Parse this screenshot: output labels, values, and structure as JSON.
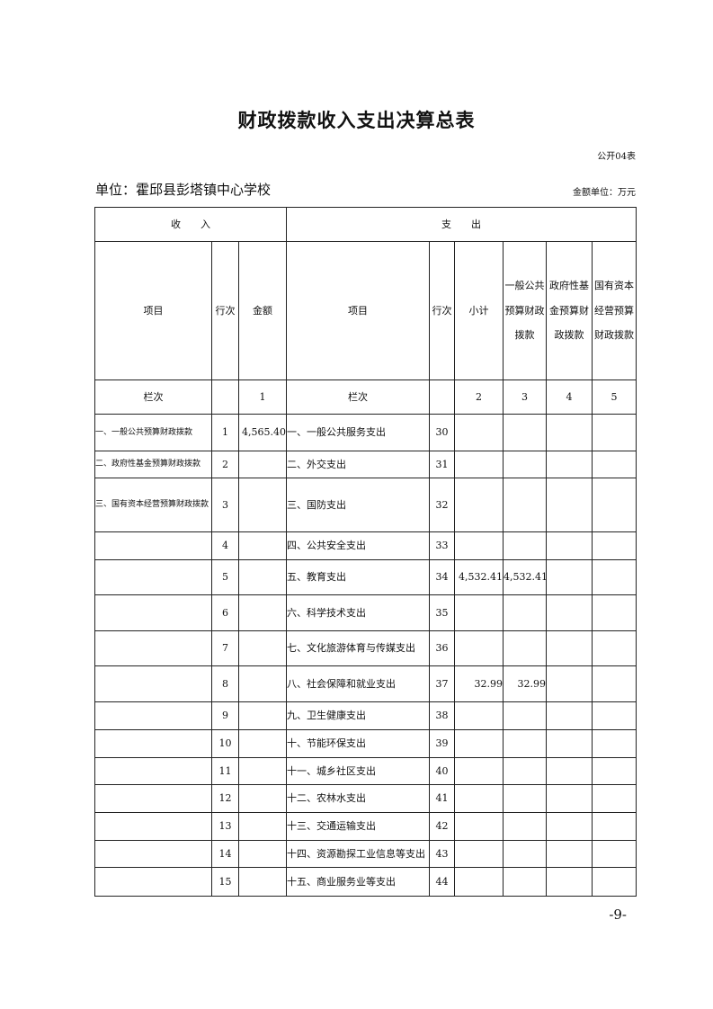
{
  "title": "财政拨款收入支出决算总表",
  "form_no": "公开04表",
  "unit": "单位：霍邱县彭塔镇中心学校",
  "money_unit": "金额单位：万元",
  "header": {
    "income": "收　　入",
    "expense": "支　　出",
    "item": "项目",
    "row_no": "行次",
    "amount": "金额",
    "subtotal": "小计",
    "general": "一般公共预算财政拨款",
    "gov_fund": "政府性基金预算财政拨款",
    "state_capital": "国有资本经营预算财政拨款",
    "col_label": "栏次",
    "c1": "1",
    "c2": "2",
    "c3": "3",
    "c4": "4",
    "c5": "5"
  },
  "rows": [
    {
      "in_item": "一、一般公共预算财政拨款",
      "in_no": "1",
      "in_amt": "4,565.40",
      "out_item": "一、一般公共服务支出",
      "out_no": "30",
      "sub": "",
      "gen": "",
      "fund": "",
      "cap": ""
    },
    {
      "in_item": "二、政府性基金预算财政拨款",
      "in_no": "2",
      "in_amt": "",
      "out_item": "二、外交支出",
      "out_no": "31",
      "sub": "",
      "gen": "",
      "fund": "",
      "cap": ""
    },
    {
      "in_item": "三、国有资本经营预算财政拨款",
      "in_no": "3",
      "in_amt": "",
      "out_item": "三、国防支出",
      "out_no": "32",
      "sub": "",
      "gen": "",
      "fund": "",
      "cap": ""
    },
    {
      "in_item": "",
      "in_no": "4",
      "in_amt": "",
      "out_item": "四、公共安全支出",
      "out_no": "33",
      "sub": "",
      "gen": "",
      "fund": "",
      "cap": ""
    },
    {
      "in_item": "",
      "in_no": "5",
      "in_amt": "",
      "out_item": "五、教育支出",
      "out_no": "34",
      "sub": "4,532.41",
      "gen": "4,532.41",
      "fund": "",
      "cap": ""
    },
    {
      "in_item": "",
      "in_no": "6",
      "in_amt": "",
      "out_item": "六、科学技术支出",
      "out_no": "35",
      "sub": "",
      "gen": "",
      "fund": "",
      "cap": ""
    },
    {
      "in_item": "",
      "in_no": "7",
      "in_amt": "",
      "out_item": "七、文化旅游体育与传媒支出",
      "out_no": "36",
      "sub": "",
      "gen": "",
      "fund": "",
      "cap": ""
    },
    {
      "in_item": "",
      "in_no": "8",
      "in_amt": "",
      "out_item": "八、社会保障和就业支出",
      "out_no": "37",
      "sub": "32.99",
      "gen": "32.99",
      "fund": "",
      "cap": ""
    },
    {
      "in_item": "",
      "in_no": "9",
      "in_amt": "",
      "out_item": "九、卫生健康支出",
      "out_no": "38",
      "sub": "",
      "gen": "",
      "fund": "",
      "cap": ""
    },
    {
      "in_item": "",
      "in_no": "10",
      "in_amt": "",
      "out_item": "十、节能环保支出",
      "out_no": "39",
      "sub": "",
      "gen": "",
      "fund": "",
      "cap": ""
    },
    {
      "in_item": "",
      "in_no": "11",
      "in_amt": "",
      "out_item": "十一、城乡社区支出",
      "out_no": "40",
      "sub": "",
      "gen": "",
      "fund": "",
      "cap": ""
    },
    {
      "in_item": "",
      "in_no": "12",
      "in_amt": "",
      "out_item": "十二、农林水支出",
      "out_no": "41",
      "sub": "",
      "gen": "",
      "fund": "",
      "cap": ""
    },
    {
      "in_item": "",
      "in_no": "13",
      "in_amt": "",
      "out_item": "十三、交通运输支出",
      "out_no": "42",
      "sub": "",
      "gen": "",
      "fund": "",
      "cap": ""
    },
    {
      "in_item": "",
      "in_no": "14",
      "in_amt": "",
      "out_item": "十四、资源勘探工业信息等支出",
      "out_no": "43",
      "sub": "",
      "gen": "",
      "fund": "",
      "cap": ""
    },
    {
      "in_item": "",
      "in_no": "15",
      "in_amt": "",
      "out_item": "十五、商业服务业等支出",
      "out_no": "44",
      "sub": "",
      "gen": "",
      "fund": "",
      "cap": ""
    }
  ],
  "page_number": "-9-"
}
